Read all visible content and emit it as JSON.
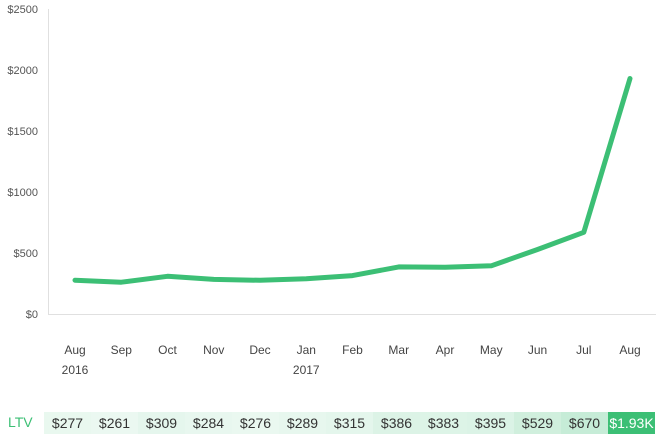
{
  "chart_data": {
    "type": "line",
    "categories": [
      "Aug",
      "Sep",
      "Oct",
      "Nov",
      "Dec",
      "Jan",
      "Feb",
      "Mar",
      "Apr",
      "May",
      "Jun",
      "Jul",
      "Aug"
    ],
    "year_labels": [
      {
        "index": 0,
        "text": "2016"
      },
      {
        "index": 5,
        "text": "2017"
      }
    ],
    "values": [
      277,
      261,
      309,
      284,
      276,
      289,
      315,
      386,
      383,
      395,
      529,
      670,
      1930
    ],
    "ylim": [
      0,
      2500
    ],
    "yticks": [
      0,
      500,
      1000,
      1500,
      2000,
      2500
    ],
    "ytick_labels": [
      "$0",
      "$500",
      "$1000",
      "$1500",
      "$2000",
      "$2500"
    ],
    "grid": false,
    "line_color": "#3cbf75"
  },
  "ltv": {
    "label": "LTV",
    "cells": [
      "$277",
      "$261",
      "$309",
      "$284",
      "$276",
      "$289",
      "$315",
      "$386",
      "$383",
      "$395",
      "$529",
      "$670",
      "$1.93K"
    ],
    "highlight_color": "#3cbf75"
  }
}
